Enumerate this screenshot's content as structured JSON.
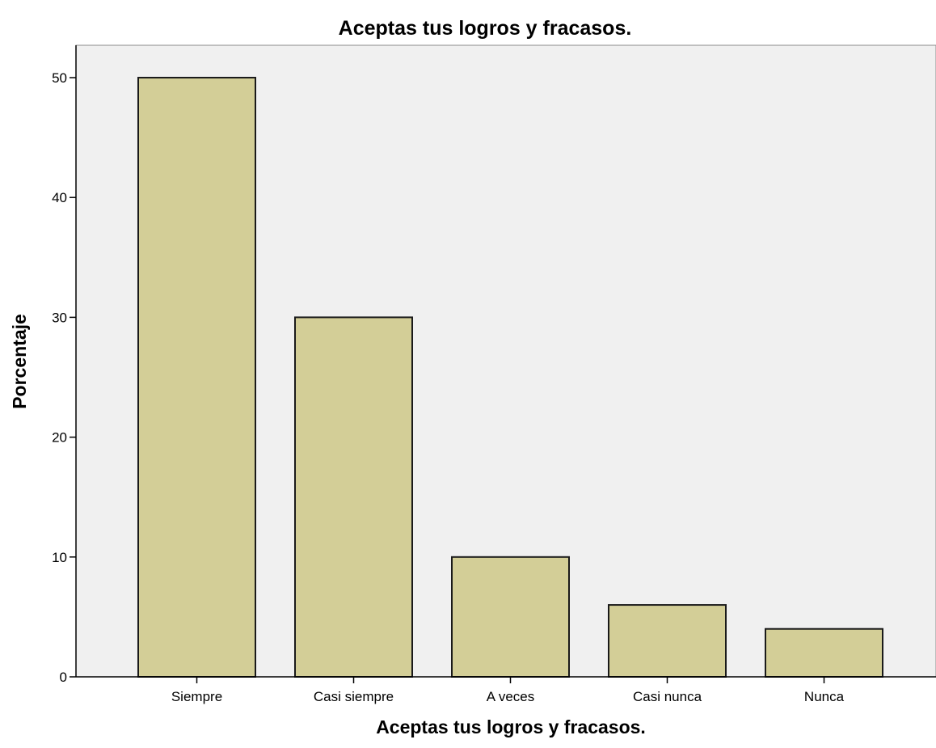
{
  "chart_data": {
    "type": "bar",
    "title": "Aceptas tus logros y fracasos.",
    "xlabel": "Aceptas tus logros y fracasos.",
    "ylabel": "Porcentaje",
    "categories": [
      "Siempre",
      "Casi siempre",
      "A veces",
      "Casi nunca",
      "Nunca"
    ],
    "values": [
      50,
      30,
      10,
      6,
      4
    ],
    "ylim": [
      0,
      52.7
    ],
    "yticks": [
      "0",
      "10",
      "20",
      "30",
      "40",
      "50"
    ],
    "grid": false,
    "legend": "none",
    "colors": {
      "bar_fill": "#d3ce97",
      "bar_stroke": "#1a1a1a",
      "plot_background": "#f0f0f0",
      "page_background": "#ffffff"
    }
  }
}
